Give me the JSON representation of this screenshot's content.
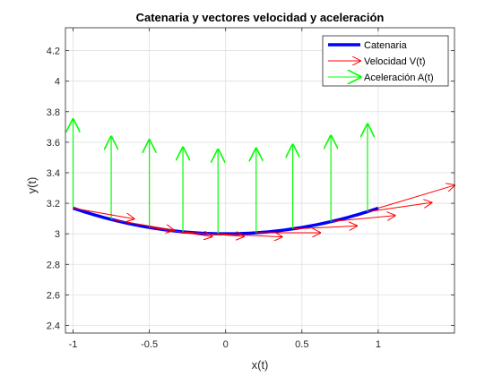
{
  "chart_data": {
    "type": "line",
    "title": "Catenaria y vectores velocidad y aceleración",
    "xlabel": "x(t)",
    "ylabel": "y(t)",
    "xlim": [
      -1.05,
      1.5
    ],
    "ylim": [
      2.35,
      4.35
    ],
    "xticks": [
      -1,
      -0.5,
      0,
      0.5,
      1
    ],
    "xtick_labels": [
      "-1",
      "-0.5",
      "0",
      "0.5",
      "1"
    ],
    "yticks": [
      2.4,
      2.6,
      2.8,
      3,
      3.2,
      3.4,
      3.6,
      3.8,
      4,
      4.2
    ],
    "ytick_labels": [
      "2.4",
      "2.6",
      "2.8",
      "3",
      "3.2",
      "3.4",
      "3.6",
      "3.8",
      "4",
      "4.2"
    ],
    "grid": true,
    "legend_position": "top-right",
    "catenary": {
      "a": 3,
      "x_range": [
        -1,
        1
      ]
    },
    "series": [
      {
        "name": "Catenaria",
        "color": "#0000ff",
        "style": "line"
      },
      {
        "name": "Velocidad V(t)",
        "color": "#ff0000",
        "style": "arrow"
      },
      {
        "name": "Aceleración A(t)",
        "color": "#00ff00",
        "style": "arrow"
      }
    ],
    "vectors": [
      {
        "x": -1.0,
        "y": 3.168,
        "vx": 0.4,
        "vy": -0.07,
        "ax": 0.0,
        "ay": 0.58
      },
      {
        "x": -0.75,
        "y": 3.094,
        "vx": 0.41,
        "vy": -0.07,
        "ax": 0.0,
        "ay": 0.54
      },
      {
        "x": -0.5,
        "y": 3.042,
        "vx": 0.41,
        "vy": -0.06,
        "ax": 0.0,
        "ay": 0.57
      },
      {
        "x": -0.28,
        "y": 3.013,
        "vx": 0.4,
        "vy": -0.03,
        "ax": 0.0,
        "ay": 0.55
      },
      {
        "x": -0.05,
        "y": 3.0,
        "vx": 0.42,
        "vy": -0.02,
        "ax": 0.0,
        "ay": 0.55
      },
      {
        "x": 0.2,
        "y": 3.007,
        "vx": 0.42,
        "vy": 0.0,
        "ax": 0.0,
        "ay": 0.55
      },
      {
        "x": 0.44,
        "y": 3.032,
        "vx": 0.42,
        "vy": 0.02,
        "ax": 0.0,
        "ay": 0.55
      },
      {
        "x": 0.69,
        "y": 3.08,
        "vx": 0.42,
        "vy": 0.04,
        "ax": 0.0,
        "ay": 0.56
      },
      {
        "x": 0.93,
        "y": 3.145,
        "vx": 0.42,
        "vy": 0.06,
        "ax": 0.0,
        "ay": 0.57
      },
      {
        "x": 1.0,
        "y": 3.168,
        "vx": 0.5,
        "vy": 0.15,
        "ax": 0.0,
        "ay": 0.0
      }
    ]
  }
}
